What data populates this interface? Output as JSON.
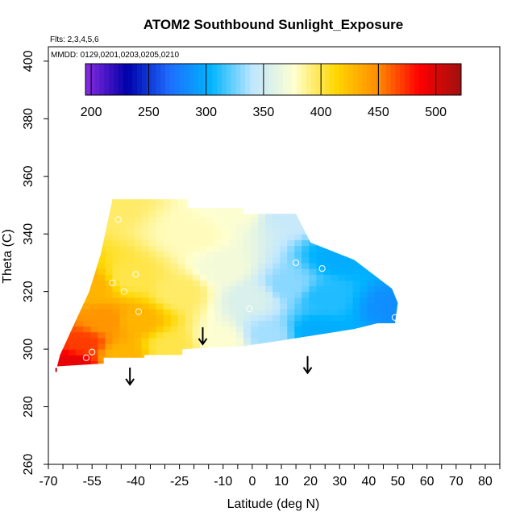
{
  "chart_data": {
    "type": "heatmap",
    "title": "ATOM2 Southbound Sunlight_Exposure",
    "annotation_flights": "Flts: 2,3,4,5,6",
    "annotation_dates": "MMDD: 0129,0201,0203,0205,0210",
    "xlabel": "Latitude (deg N)",
    "ylabel": "Theta (C)",
    "xlim": [
      -70,
      85
    ],
    "ylim": [
      260,
      405
    ],
    "xticks": [
      -70,
      -55,
      -40,
      -25,
      -10,
      0,
      10,
      20,
      30,
      40,
      50,
      60,
      70,
      80
    ],
    "yticks": [
      260,
      280,
      300,
      320,
      340,
      360,
      380,
      400
    ],
    "colorbar": {
      "range": [
        195,
        522
      ],
      "ticks": [
        200,
        250,
        300,
        350,
        400,
        450,
        500
      ],
      "colors": [
        "#8a2be2",
        "#0000a8",
        "#1e6cff",
        "#00b4ff",
        "#bfe6ff",
        "#ffffd0",
        "#ffd700",
        "#ff8c00",
        "#ff0000",
        "#a01010"
      ]
    },
    "field_region": [
      [
        -48,
        352
      ],
      [
        -22,
        352
      ],
      [
        -22,
        349
      ],
      [
        -3,
        349
      ],
      [
        -3,
        347
      ],
      [
        15,
        347
      ],
      [
        20,
        337
      ],
      [
        35,
        331
      ],
      [
        48,
        321
      ],
      [
        50,
        316
      ],
      [
        49,
        309
      ],
      [
        43,
        309
      ],
      [
        35,
        307
      ],
      [
        10,
        303
      ],
      [
        -3,
        301
      ],
      [
        -24,
        300
      ],
      [
        -24,
        298
      ],
      [
        -37,
        298
      ],
      [
        -37,
        297
      ],
      [
        -51,
        297
      ],
      [
        -51,
        295
      ],
      [
        -67,
        294
      ],
      [
        -66,
        298
      ],
      [
        -61,
        309
      ],
      [
        -56,
        320
      ],
      [
        -52,
        333
      ]
    ],
    "field_samples": [
      {
        "lat": -48,
        "theta": 352,
        "value": 395
      },
      {
        "lat": -5,
        "theta": 349,
        "value": 375
      },
      {
        "lat": 12,
        "theta": 347,
        "value": 345
      },
      {
        "lat": 30,
        "theta": 332,
        "value": 300
      },
      {
        "lat": 48,
        "theta": 315,
        "value": 285
      },
      {
        "lat": 22,
        "theta": 306,
        "value": 300
      },
      {
        "lat": 5,
        "theta": 305,
        "value": 335
      },
      {
        "lat": -10,
        "theta": 303,
        "value": 375
      },
      {
        "lat": -28,
        "theta": 301,
        "value": 400
      },
      {
        "lat": -45,
        "theta": 298,
        "value": 430
      },
      {
        "lat": -62,
        "theta": 295,
        "value": 495
      },
      {
        "lat": -58,
        "theta": 302,
        "value": 470
      },
      {
        "lat": -55,
        "theta": 322,
        "value": 430
      },
      {
        "lat": -42,
        "theta": 325,
        "value": 400
      },
      {
        "lat": -40,
        "theta": 310,
        "value": 430
      },
      {
        "lat": -25,
        "theta": 320,
        "value": 395
      },
      {
        "lat": -10,
        "theta": 328,
        "value": 370
      },
      {
        "lat": 0,
        "theta": 318,
        "value": 355
      },
      {
        "lat": 12,
        "theta": 322,
        "value": 330
      },
      {
        "lat": 25,
        "theta": 318,
        "value": 310
      },
      {
        "lat": -20,
        "theta": 340,
        "value": 380
      },
      {
        "lat": -50,
        "theta": 310,
        "value": 445
      }
    ],
    "circles": [
      {
        "lat": -46,
        "theta": 345
      },
      {
        "lat": -48,
        "theta": 323
      },
      {
        "lat": -40,
        "theta": 326
      },
      {
        "lat": -44,
        "theta": 320
      },
      {
        "lat": -39,
        "theta": 313
      },
      {
        "lat": -55,
        "theta": 299
      },
      {
        "lat": -57,
        "theta": 297
      },
      {
        "lat": -1,
        "theta": 314
      },
      {
        "lat": 15,
        "theta": 330
      },
      {
        "lat": 24,
        "theta": 328
      },
      {
        "lat": 49,
        "theta": 311
      }
    ],
    "arrows": [
      {
        "lat": -17,
        "theta": 302
      },
      {
        "lat": -42,
        "theta": 288
      },
      {
        "lat": 19,
        "theta": 292
      }
    ]
  }
}
